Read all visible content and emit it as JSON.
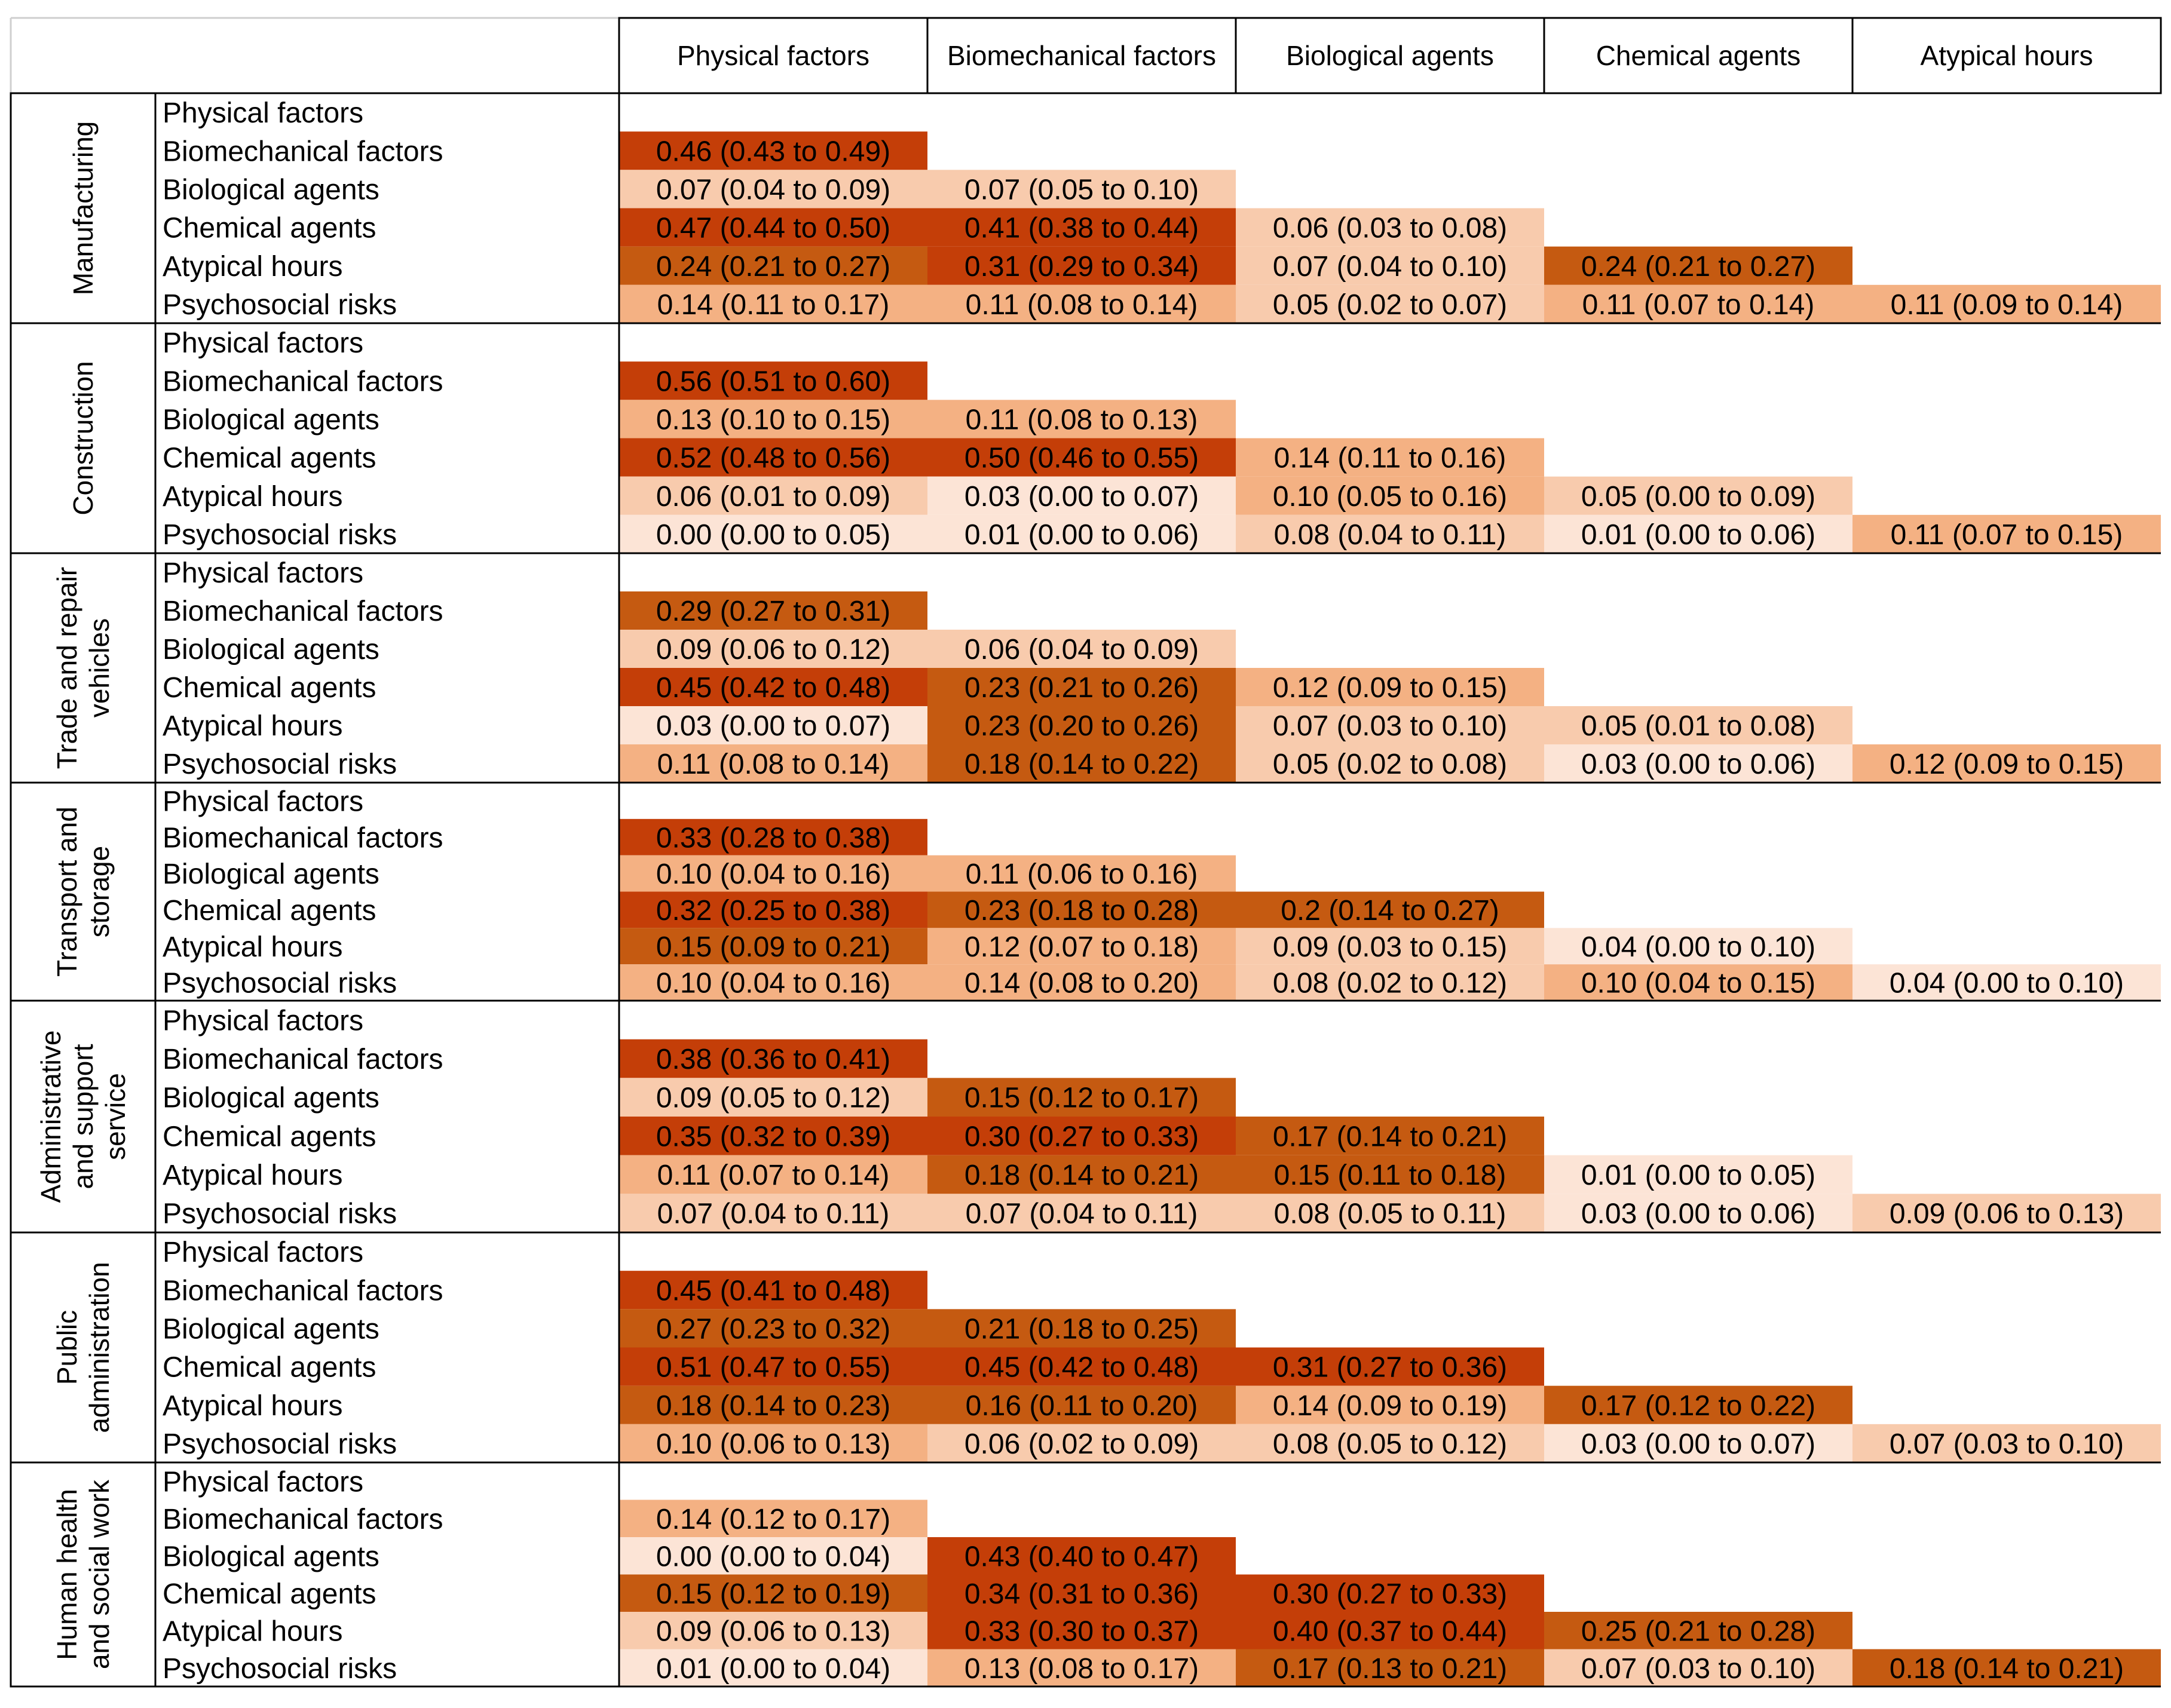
{
  "chart_data": {
    "type": "table",
    "columns": [
      "Physical factors",
      "Biomechanical factors",
      "Biological agents",
      "Chemical agents",
      "Atypical hours"
    ],
    "row_labels": [
      "Physical factors",
      "Biomechanical factors",
      "Biological agents",
      "Chemical agents",
      "Atypical hours",
      "Psychosocial risks"
    ],
    "sectors": [
      {
        "label_lines": [
          "Manufacturing"
        ],
        "rows": [
          [],
          [
            "0.46 (0.43 to 0.49)"
          ],
          [
            "0.07 (0.04 to 0.09)",
            "0.07 (0.05 to 0.10)"
          ],
          [
            "0.47 (0.44 to 0.50)",
            "0.41 (0.38 to 0.44)",
            "0.06 (0.03 to 0.08)"
          ],
          [
            "0.24 (0.21 to 0.27)",
            "0.31 (0.29 to 0.34)",
            "0.07 (0.04 to 0.10)",
            "0.24 (0.21 to 0.27)"
          ],
          [
            "0.14 (0.11 to 0.17)",
            "0.11 (0.08 to 0.14)",
            "0.05 (0.02 to 0.07)",
            "0.11 (0.07 to 0.14)",
            "0.11 (0.09 to 0.14)"
          ]
        ]
      },
      {
        "label_lines": [
          "Construction"
        ],
        "rows": [
          [],
          [
            "0.56 (0.51 to 0.60)"
          ],
          [
            "0.13 (0.10 to 0.15)",
            "0.11 (0.08 to 0.13)"
          ],
          [
            "0.52 (0.48 to 0.56)",
            "0.50 (0.46 to 0.55)",
            "0.14 (0.11 to 0.16)"
          ],
          [
            "0.06 (0.01 to 0.09)",
            "0.03 (0.00 to 0.07)",
            "0.10 (0.05 to 0.16)",
            "0.05 (0.00 to 0.09)"
          ],
          [
            "0.00 (0.00 to 0.05)",
            "0.01 (0.00 to 0.06)",
            "0.08 (0.04 to 0.11)",
            "0.01 (0.00 to 0.06)",
            "0.11 (0.07 to 0.15)"
          ]
        ]
      },
      {
        "label_lines": [
          "Trade and repair",
          "vehicles"
        ],
        "rows": [
          [],
          [
            "0.29 (0.27 to 0.31)"
          ],
          [
            "0.09 (0.06 to 0.12)",
            "0.06 (0.04 to 0.09)"
          ],
          [
            "0.45 (0.42 to 0.48)",
            "0.23 (0.21 to 0.26)",
            "0.12 (0.09 to 0.15)"
          ],
          [
            "0.03 (0.00 to 0.07)",
            "0.23 (0.20 to 0.26)",
            "0.07 (0.03 to 0.10)",
            "0.05 (0.01 to 0.08)"
          ],
          [
            "0.11 (0.08 to 0.14)",
            "0.18 (0.14 to 0.22)",
            "0.05 (0.02 to 0.08)",
            "0.03 (0.00 to 0.06)",
            "0.12 (0.09 to 0.15)"
          ]
        ]
      },
      {
        "label_lines": [
          "Transport and",
          "storage"
        ],
        "rows": [
          [],
          [
            "0.33 (0.28 to 0.38)"
          ],
          [
            "0.10 (0.04 to 0.16)",
            "0.11 (0.06 to 0.16)"
          ],
          [
            "0.32 (0.25 to 0.38)",
            "0.23 (0.18 to 0.28)",
            "0.2 (0.14 to 0.27)"
          ],
          [
            "0.15 (0.09 to 0.21)",
            "0.12 (0.07 to 0.18)",
            "0.09 (0.03 to 0.15)",
            "0.04 (0.00 to 0.10)"
          ],
          [
            "0.10 (0.04 to 0.16)",
            "0.14 (0.08 to 0.20)",
            "0.08 (0.02 to 0.12)",
            "0.10 (0.04 to 0.15)",
            "0.04 (0.00 to 0.10)"
          ]
        ]
      },
      {
        "label_lines": [
          "Administrative",
          "and support",
          "service"
        ],
        "rows": [
          [],
          [
            "0.38 (0.36 to 0.41)"
          ],
          [
            "0.09 (0.05 to 0.12)",
            "0.15 (0.12 to 0.17)"
          ],
          [
            "0.35 (0.32 to 0.39)",
            "0.30 (0.27 to 0.33)",
            "0.17 (0.14 to 0.21)"
          ],
          [
            "0.11 (0.07 to 0.14)",
            "0.18 (0.14 to 0.21)",
            "0.15 (0.11 to 0.18)",
            "0.01 (0.00 to 0.05)"
          ],
          [
            "0.07 (0.04 to 0.11)",
            "0.07 (0.04 to 0.11)",
            "0.08 (0.05 to 0.11)",
            "0.03 (0.00 to 0.06)",
            "0.09 (0.06 to 0.13)"
          ]
        ]
      },
      {
        "label_lines": [
          "Public",
          "administration"
        ],
        "rows": [
          [],
          [
            "0.45 (0.41 to 0.48)"
          ],
          [
            "0.27 (0.23 to 0.32)",
            "0.21 (0.18 to 0.25)"
          ],
          [
            "0.51 (0.47 to 0.55)",
            "0.45 (0.42 to 0.48)",
            "0.31 (0.27 to 0.36)"
          ],
          [
            "0.18 (0.14 to 0.23)",
            "0.16 (0.11 to 0.20)",
            "0.14 (0.09 to 0.19)",
            "0.17 (0.12 to 0.22)"
          ],
          [
            "0.10 (0.06 to 0.13)",
            "0.06 (0.02 to 0.09)",
            "0.08 (0.05 to 0.12)",
            "0.03 (0.00 to 0.07)",
            "0.07 (0.03 to 0.10)"
          ]
        ]
      },
      {
        "label_lines": [
          "Human health",
          "and social work"
        ],
        "rows": [
          [],
          [
            "0.14 (0.12 to 0.17)"
          ],
          [
            "0.00 (0.00 to 0.04)",
            "0.43 (0.40 to 0.47)"
          ],
          [
            "0.15 (0.12 to 0.19)",
            "0.34 (0.31 to 0.36)",
            "0.30 (0.27 to 0.33)"
          ],
          [
            "0.09 (0.06 to 0.13)",
            "0.33 (0.30 to 0.37)",
            "0.40 (0.37 to 0.44)",
            "0.25 (0.21 to 0.28)"
          ],
          [
            "0.01 (0.00 to 0.04)",
            "0.13 (0.08 to 0.17)",
            "0.17 (0.13 to 0.21)",
            "0.07 (0.03 to 0.10)",
            "0.18 (0.14 to 0.21)"
          ]
        ]
      }
    ],
    "color_scale": [
      {
        "min": 0.0,
        "color": "#fce4d6"
      },
      {
        "min": 0.05,
        "color": "#f8cbad"
      },
      {
        "min": 0.1,
        "color": "#f4b183"
      },
      {
        "min": 0.15,
        "color": "#c55a11"
      },
      {
        "min": 0.3,
        "color": "#c43e08"
      }
    ]
  }
}
